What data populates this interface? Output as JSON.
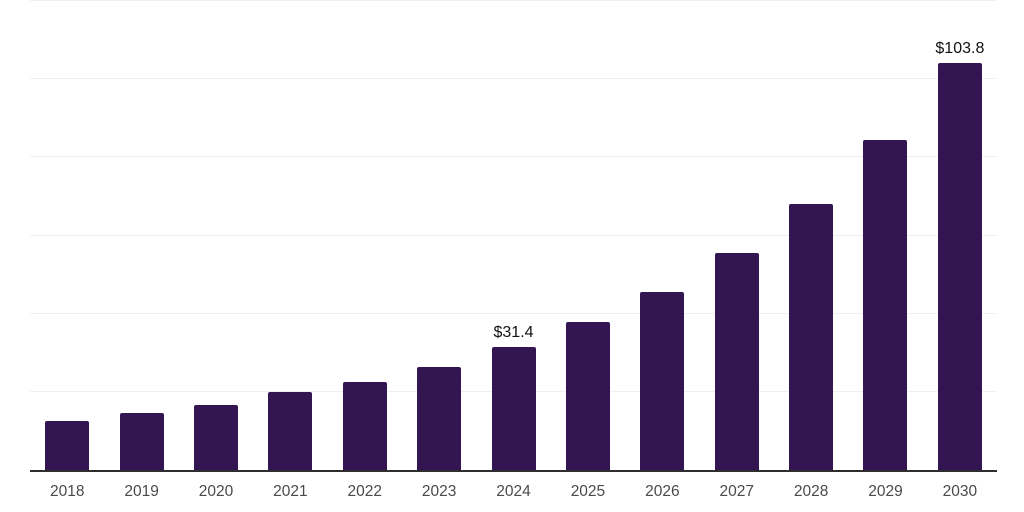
{
  "chart_data": {
    "type": "bar",
    "title": "",
    "xlabel": "",
    "ylabel": "",
    "categories": [
      "2018",
      "2019",
      "2020",
      "2021",
      "2022",
      "2023",
      "2024",
      "2025",
      "2026",
      "2027",
      "2028",
      "2029",
      "2030"
    ],
    "values": [
      12.6,
      14.6,
      16.7,
      19.9,
      22.5,
      26.3,
      31.4,
      37.9,
      45.4,
      55.5,
      68.0,
      84.2,
      103.8
    ],
    "data_labels": [
      "",
      "",
      "",
      "",
      "",
      "",
      "$31.4",
      "",
      "",
      "",
      "",
      "",
      "$103.8"
    ],
    "ylim": [
      0,
      120
    ],
    "grid_step": 20,
    "grid": true,
    "legend_position": "none",
    "colors": {
      "bar": "#331551",
      "grid": "#f0f0f0",
      "axis": "#2e2e2e",
      "tick_label": "#4a4a4a",
      "data_label": "#111111",
      "background": "#ffffff"
    }
  }
}
